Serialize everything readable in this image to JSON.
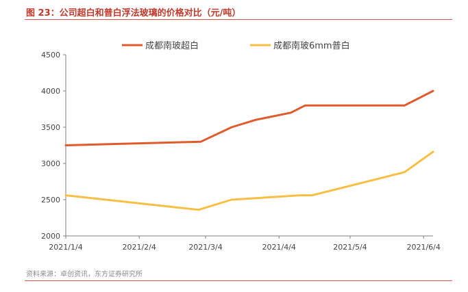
{
  "figure": {
    "title": "图 23：公司超白和普白浮法玻璃的价格对比（元/吨）",
    "source": "资料来源：卓创资讯，东方证券研究所"
  },
  "colors": {
    "series1": "#e05a2b",
    "series2": "#f9be44",
    "axis": "#7f7f7f",
    "title": "#c0392b"
  },
  "chart_data": {
    "type": "line",
    "title": "",
    "xlabel": "",
    "ylabel": "",
    "ylim": [
      2000,
      4500
    ],
    "yticks": [
      2000,
      2500,
      3000,
      3500,
      4000,
      4500
    ],
    "xlim": [
      "2021-01-04",
      "2021-06-08"
    ],
    "xticks": [
      "2021-01-04",
      "2021-02-04",
      "2021-03-04",
      "2021-04-04",
      "2021-05-04",
      "2021-06-04"
    ],
    "xtick_labels": [
      "2021/1/4",
      "2021/2/4",
      "2021/3/4",
      "2021/4/4",
      "2021/5/4",
      "2021/6/4"
    ],
    "grid": false,
    "legend_position": "top-center",
    "series": [
      {
        "name": "成都南玻超白",
        "color": "#e05a2b",
        "points": [
          [
            "2021-01-04",
            3250
          ],
          [
            "2021-03-02",
            3300
          ],
          [
            "2021-03-15",
            3500
          ],
          [
            "2021-03-25",
            3600
          ],
          [
            "2021-04-09",
            3700
          ],
          [
            "2021-04-15",
            3800
          ],
          [
            "2021-05-27",
            3800
          ],
          [
            "2021-06-08",
            4000
          ]
        ]
      },
      {
        "name": "成都南玻6mm普白",
        "color": "#f9be44",
        "points": [
          [
            "2021-01-04",
            2560
          ],
          [
            "2021-03-01",
            2360
          ],
          [
            "2021-03-15",
            2500
          ],
          [
            "2021-04-13",
            2560
          ],
          [
            "2021-04-18",
            2560
          ],
          [
            "2021-05-27",
            2880
          ],
          [
            "2021-06-08",
            3160
          ]
        ]
      }
    ]
  }
}
